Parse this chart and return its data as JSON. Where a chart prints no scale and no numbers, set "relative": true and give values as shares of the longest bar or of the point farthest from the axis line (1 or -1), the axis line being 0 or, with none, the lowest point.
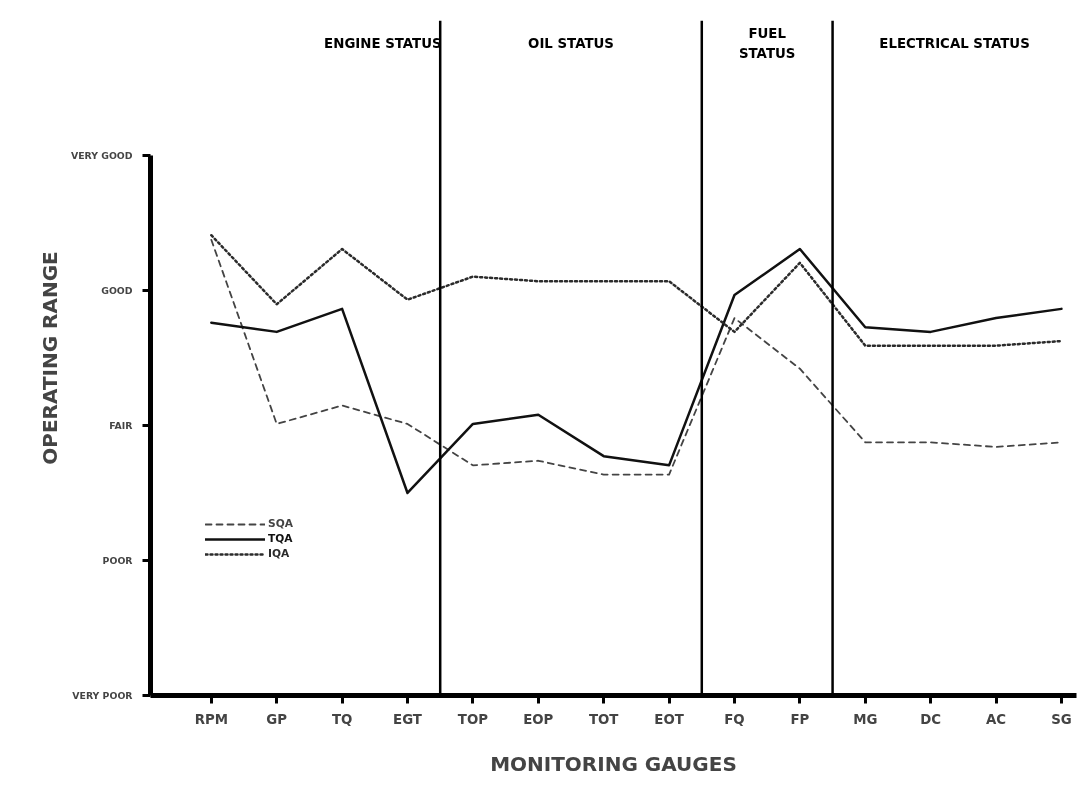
{
  "chart_data": {
    "type": "line",
    "relative": true,
    "xlabel": "MONITORING GAUGES",
    "ylabel": "OPERATING RANGE",
    "categories": [
      "RPM",
      "GP",
      "TQ",
      "EGT",
      "TOP",
      "EOP",
      "TOT",
      "EOT",
      "FQ",
      "FP",
      "MG",
      "DC",
      "AC",
      "SG"
    ],
    "series": [
      {
        "name": "SQA",
        "color": "#444444",
        "line_style": "dashed",
        "values": [
          0.99,
          0.59,
          0.63,
          0.59,
          0.5,
          0.51,
          0.48,
          0.48,
          0.82,
          0.71,
          0.55,
          0.55,
          0.54,
          0.55
        ]
      },
      {
        "name": "TQA",
        "color": "#111111",
        "line_style": "solid",
        "values": [
          0.81,
          0.79,
          0.84,
          0.44,
          0.59,
          0.61,
          0.52,
          0.5,
          0.87,
          0.97,
          0.8,
          0.79,
          0.82,
          0.84
        ]
      },
      {
        "name": "IQA",
        "color": "#2b2b2b",
        "line_style": "dotted",
        "values": [
          1,
          0.85,
          0.97,
          0.86,
          0.91,
          0.9,
          0.9,
          0.9,
          0.79,
          0.94,
          0.76,
          0.76,
          0.76,
          0.77
        ]
      }
    ],
    "annotations": [
      "ENGINE STATUS",
      "OIL STATUS",
      "FUEL\nSTATUS",
      "ELECTRICAL STATUS",
      "VERY POOR",
      "POOR",
      "FAIR",
      "GOOD",
      "VERY GOOD"
    ],
    "grid": false,
    "legend": "bottom left"
  }
}
